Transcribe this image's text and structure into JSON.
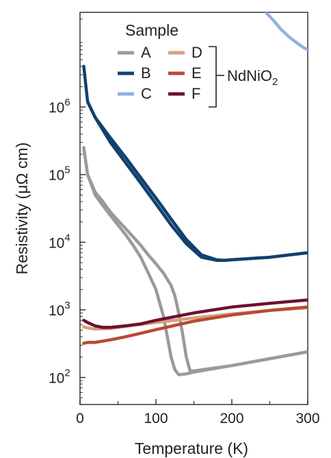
{
  "chart_data": {
    "type": "line",
    "xlabel": "Temperature (K)",
    "ylabel": "Resistivity (μΩ cm)",
    "xlim": [
      0,
      300
    ],
    "ylim_log10": [
      1.6,
      7.4
    ],
    "yscale": "log",
    "grid": false,
    "x_ticks": [
      {
        "value": 0,
        "label": "0"
      },
      {
        "value": 100,
        "label": "100"
      },
      {
        "value": 200,
        "label": "200"
      },
      {
        "value": 300,
        "label": "300"
      }
    ],
    "y_ticks": [
      {
        "exp": 2,
        "base": "10",
        "sup": "2"
      },
      {
        "exp": 3,
        "base": "10",
        "sup": "3"
      },
      {
        "exp": 4,
        "base": "10",
        "sup": "4"
      },
      {
        "exp": 5,
        "base": "10",
        "sup": "5"
      },
      {
        "exp": 6,
        "base": "10",
        "sup": "6"
      }
    ],
    "legend": {
      "title": "Sample",
      "placement": "top",
      "group_label": "NdNiO",
      "group_label_sub": "2"
    },
    "series": [
      {
        "name": "A",
        "color": "#9a9a9a",
        "x": [
          5,
          10,
          20,
          30,
          40,
          50,
          60,
          70,
          80,
          90,
          100,
          110,
          115,
          120,
          125,
          130,
          140,
          150,
          200,
          250,
          300
        ],
        "y": [
          250000.0,
          100000.0,
          50000.0,
          35000.0,
          25000.0,
          18000.0,
          13000.0,
          9000.0,
          6000.0,
          3500.0,
          2000.0,
          800,
          400,
          200,
          130,
          110,
          113,
          120,
          150,
          190,
          240
        ]
      },
      {
        "name": "A",
        "color": "#9a9a9a",
        "x": [
          5,
          10,
          20,
          30,
          40,
          50,
          60,
          70,
          80,
          90,
          100,
          110,
          120,
          125,
          130,
          135,
          140,
          145,
          150,
          200,
          250,
          300
        ],
        "y": [
          250000.0,
          100000.0,
          55000.0,
          40000.0,
          28000.0,
          21000.0,
          16000.0,
          12000.0,
          9000.0,
          6500.0,
          4800.0,
          3500.0,
          2300.0,
          1600.0,
          900,
          450,
          200,
          125,
          125,
          150,
          190,
          240
        ]
      },
      {
        "name": "B",
        "color": "#10406e",
        "x": [
          5,
          10,
          20,
          40,
          60,
          80,
          100,
          120,
          140,
          160,
          180,
          190,
          200,
          250,
          300
        ],
        "y": [
          4000000.0,
          1200000.0,
          700000.0,
          350000.0,
          180000.0,
          90000.0,
          45000.0,
          22000.0,
          11000.0,
          6500.0,
          5500.0,
          5400.0,
          5500.0,
          6000.0,
          7000.0
        ]
      },
      {
        "name": "B",
        "color": "#10406e",
        "x": [
          10,
          20,
          40,
          60,
          80,
          100,
          120,
          140,
          160,
          180,
          190,
          200,
          250,
          300
        ],
        "y": [
          1200000.0,
          700000.0,
          300000.0,
          150000.0,
          75000.0,
          37000.0,
          18000.0,
          9500.0,
          6000.0,
          5400.0,
          5400.0,
          5500.0,
          6000.0,
          7000.0
        ]
      },
      {
        "name": "C",
        "color": "#94b1de",
        "x": [
          245,
          255,
          265,
          275,
          285,
          295,
          300
        ],
        "y": [
          25000000.0,
          19000000.0,
          14000000.0,
          11000000.0,
          9000000.0,
          7500000.0,
          7000000.0
        ]
      },
      {
        "name": "D",
        "color": "#d8a07a",
        "x": [
          5,
          10,
          20,
          40,
          60,
          80,
          100,
          150,
          200,
          250,
          300
        ],
        "y": [
          560,
          540,
          520,
          530,
          570,
          610,
          650,
          760,
          870,
          980,
          1070
        ]
      },
      {
        "name": "E",
        "color": "#b84a33",
        "x": [
          5,
          10,
          20,
          40,
          60,
          80,
          100,
          150,
          200,
          250,
          300
        ],
        "y": [
          320,
          330,
          330,
          360,
          400,
          450,
          510,
          680,
          840,
          980,
          1100
        ]
      },
      {
        "name": "F",
        "color": "#6b1230",
        "x": [
          5,
          10,
          20,
          30,
          40,
          60,
          80,
          100,
          150,
          200,
          250,
          300
        ],
        "y": [
          700,
          650,
          580,
          550,
          550,
          580,
          620,
          700,
          900,
          1100,
          1250,
          1400
        ]
      }
    ]
  }
}
